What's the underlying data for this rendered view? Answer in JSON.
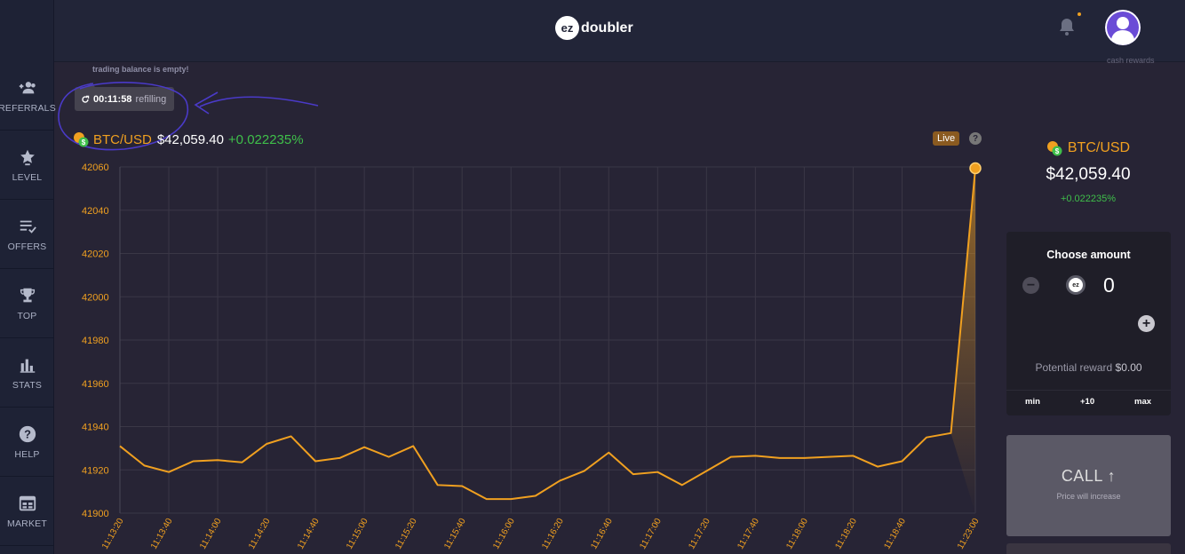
{
  "header": {
    "logo_badge": "ez",
    "logo_text": "doubler"
  },
  "sidebar": {
    "items": [
      {
        "label": "REFERRALS",
        "icon": "referrals-icon"
      },
      {
        "label": "LEVEL",
        "icon": "star-icon"
      },
      {
        "label": "OFFERS",
        "icon": "offers-icon"
      },
      {
        "label": "TOP",
        "icon": "trophy-icon"
      },
      {
        "label": "STATS",
        "icon": "stats-icon"
      },
      {
        "label": "HELP",
        "icon": "help-icon"
      },
      {
        "label": "MARKET",
        "icon": "market-icon"
      }
    ]
  },
  "notice": {
    "text": "trading balance is empty!"
  },
  "timer": {
    "time": "00:11:58",
    "status": "refilling"
  },
  "ticker": {
    "pair": "BTC/USD",
    "price": "$42,059.40",
    "change": "+0.022235%"
  },
  "live_badge": "Live",
  "help_mark": "?",
  "cash_rewards": "cash rewards",
  "amount": {
    "title": "Choose amount",
    "value": "0",
    "currency_badge": "ez",
    "minus": "−",
    "plus": "+",
    "reward_label": "Potential reward",
    "reward_value": "$0.00",
    "quick": [
      "min",
      "+10",
      "max"
    ]
  },
  "call": {
    "label": "CALL ↑",
    "sub": "Price will increase"
  },
  "colors": {
    "accent": "#f0a020",
    "positive": "#3fbf4a",
    "annotation": "#4a3ac8"
  },
  "chart_data": {
    "type": "line",
    "x": [
      "11:13:20",
      "11:13:30",
      "11:13:40",
      "11:13:50",
      "11:14:00",
      "11:14:10",
      "11:14:20",
      "11:14:30",
      "11:14:40",
      "11:14:50",
      "11:15:00",
      "11:15:10",
      "11:15:20",
      "11:15:30",
      "11:15:40",
      "11:15:50",
      "11:16:00",
      "11:16:10",
      "11:16:20",
      "11:16:30",
      "11:16:40",
      "11:16:50",
      "11:17:00",
      "11:17:10",
      "11:17:20",
      "11:17:30",
      "11:17:40",
      "11:17:50",
      "11:18:00",
      "11:18:10",
      "11:18:20",
      "11:18:30",
      "11:18:40",
      "11:18:50",
      "11:19:00",
      "11:23:00"
    ],
    "x_ticks": [
      "11:13:20",
      "11:13:40",
      "11:14:00",
      "11:14:20",
      "11:14:40",
      "11:15:00",
      "11:15:20",
      "11:15:40",
      "11:16:00",
      "11:16:20",
      "11:16:40",
      "11:17:00",
      "11:17:20",
      "11:17:40",
      "11:18:00",
      "11:18:20",
      "11:18:40",
      "11:23:00"
    ],
    "values": [
      41931,
      41922,
      41919,
      41924,
      41924.5,
      41923.5,
      41932,
      41935.5,
      41924,
      41925.5,
      41930.5,
      41926,
      41931,
      41913,
      41912.5,
      41906.5,
      41906.5,
      41908,
      41915,
      41919.5,
      41928,
      41918,
      41919,
      41913,
      41919.5,
      41926,
      41926.5,
      41925.5,
      41925.5,
      41926,
      41926.5,
      41921.5,
      41924,
      41935,
      41937,
      42059.4
    ],
    "ylim": [
      41900,
      42060
    ],
    "y_ticks": [
      41900,
      41920,
      41940,
      41960,
      41980,
      42000,
      42020,
      42040,
      42060
    ],
    "grid": true
  }
}
